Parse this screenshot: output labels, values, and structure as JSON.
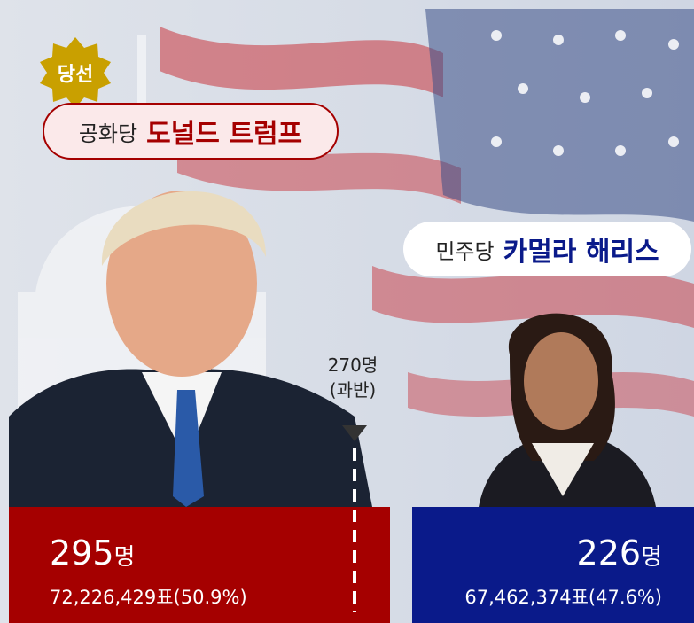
{
  "badge": "당선",
  "winner": {
    "party": "공화당",
    "name": "도널드 트럼프",
    "electors": "295",
    "unit": "명",
    "votes": "72,226,429표(50.9%)"
  },
  "runner_up": {
    "party": "민주당",
    "name": "카멀라 해리스",
    "electors": "226",
    "unit": "명",
    "votes": "67,462,374표(47.6%)"
  },
  "threshold": {
    "label": "270명",
    "note": "(과반)"
  }
}
